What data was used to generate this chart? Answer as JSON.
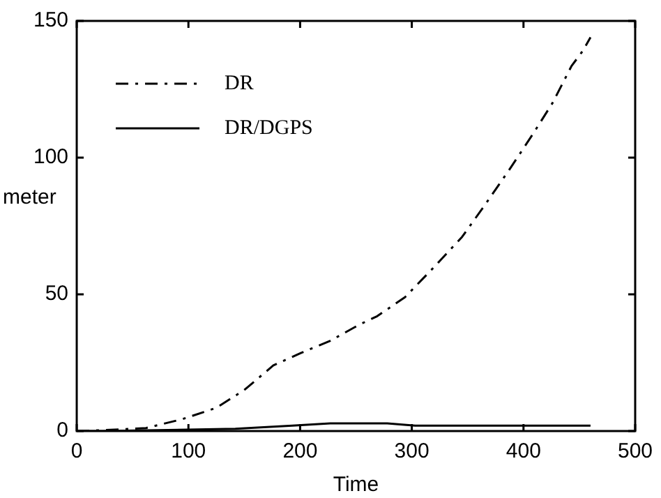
{
  "chart_data": {
    "type": "line",
    "xlabel": "Time",
    "ylabel": "meter",
    "xlim": [
      0,
      500
    ],
    "xticks": [
      0,
      100,
      200,
      300,
      400,
      500
    ],
    "ylim": [
      0,
      150
    ],
    "yticks": [
      0,
      50,
      100,
      150
    ],
    "grid": false,
    "legend": "top left",
    "marker": "none",
    "series": [
      {
        "name": "DR",
        "color": "#000000",
        "line_style": "dashed",
        "x": [
          0,
          23,
          62,
          95,
          125,
          150,
          176,
          201,
          227,
          252,
          269,
          294,
          320,
          345,
          366,
          388,
          409,
          426,
          443,
          453,
          460
        ],
        "values": [
          0,
          0.3,
          1.1,
          4.4,
          8.5,
          15,
          24,
          28.6,
          33,
          38.7,
          42,
          49,
          60,
          71,
          83,
          96,
          109,
          120,
          133.5,
          139,
          144
        ]
      },
      {
        "name": "DR/DGPS",
        "color": "#000000",
        "line_style": "solid",
        "x": [
          0,
          23,
          142,
          193,
          227,
          278,
          303,
          460
        ],
        "values": [
          0,
          0,
          0.8,
          2,
          2.8,
          2.8,
          2,
          2
        ]
      }
    ]
  }
}
